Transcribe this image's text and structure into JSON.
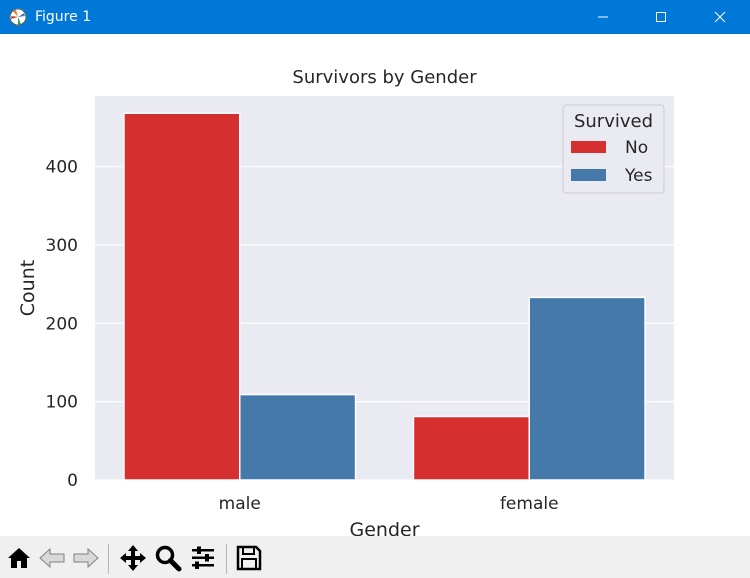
{
  "window": {
    "title": "Figure 1",
    "titlebar_color": "#0078d7"
  },
  "chart_data": {
    "type": "bar",
    "title": "Survivors by Gender",
    "xlabel": "Gender",
    "ylabel": "Count",
    "categories": [
      "male",
      "female"
    ],
    "series": [
      {
        "name": "No",
        "color": "#d62f30",
        "values": [
          468,
          81
        ]
      },
      {
        "name": "Yes",
        "color": "#4579aa",
        "values": [
          109,
          233
        ]
      }
    ],
    "ylim": [
      0,
      490
    ],
    "yticks": [
      0,
      100,
      200,
      300,
      400
    ],
    "legend": {
      "title": "Survived",
      "placement": "top-right"
    },
    "grid": true,
    "style": {
      "axes_bg": "#eaeaf2",
      "grid_color": "#ffffff"
    }
  },
  "toolbar": {
    "items": [
      "home-icon",
      "back-icon",
      "forward-icon",
      "pan-icon",
      "zoom-icon",
      "configure-subplots-icon",
      "save-icon"
    ]
  }
}
